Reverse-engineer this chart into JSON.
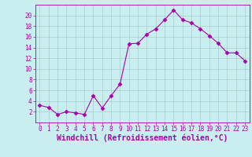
{
  "x": [
    0,
    1,
    2,
    3,
    4,
    5,
    6,
    7,
    8,
    9,
    10,
    11,
    12,
    13,
    14,
    15,
    16,
    17,
    18,
    19,
    20,
    21,
    22,
    23
  ],
  "y": [
    3.2,
    2.8,
    1.5,
    2.0,
    1.8,
    1.5,
    5.0,
    2.7,
    5.0,
    7.2,
    14.7,
    14.8,
    16.5,
    17.5,
    19.2,
    21.0,
    19.2,
    18.6,
    17.5,
    16.2,
    14.8,
    13.0,
    13.0,
    11.5
  ],
  "line_color": "#aa00aa",
  "marker": "D",
  "marker_size": 2.5,
  "bg_color": "#c8eef0",
  "grid_color": "#aacccc",
  "xlabel": "Windchill (Refroidissement éolien,°C)",
  "xlim": [
    -0.5,
    23.5
  ],
  "ylim": [
    0,
    22
  ],
  "yticks": [
    2,
    4,
    6,
    8,
    10,
    12,
    14,
    16,
    18,
    20
  ],
  "xticks": [
    0,
    1,
    2,
    3,
    4,
    5,
    6,
    7,
    8,
    9,
    10,
    11,
    12,
    13,
    14,
    15,
    16,
    17,
    18,
    19,
    20,
    21,
    22,
    23
  ],
  "font_color": "#aa00aa",
  "tick_fontsize": 5.5,
  "label_fontsize": 7.0
}
